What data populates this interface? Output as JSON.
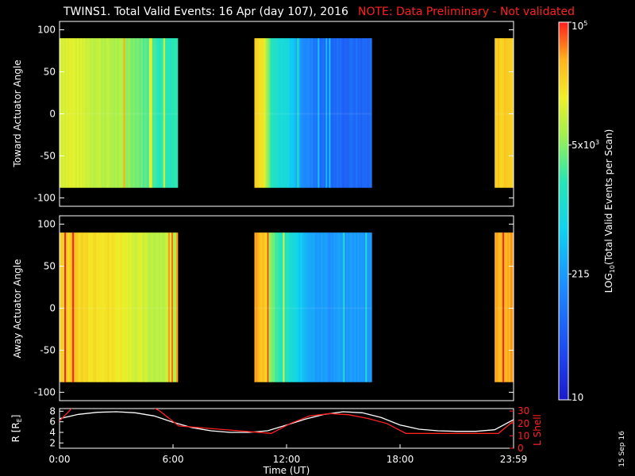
{
  "header": {
    "title": "TWINS1. Total Valid Events: 16 Apr (day 107), 2016",
    "note": "NOTE: Data Preliminary - Not validated"
  },
  "side_date": "15 Sep 16",
  "colors": {
    "note": "#ff2020",
    "lshell": "#ff2020",
    "radius": "#ffffff",
    "background": "#000000"
  },
  "chart_data": [
    {
      "type": "heatmap",
      "panel": "toward",
      "ylabel": "Toward Actuator Angle",
      "ylim": [
        -110,
        110
      ],
      "yticks": [
        "100",
        "50",
        "0",
        "-50",
        "-100"
      ],
      "angle_range": [
        -88,
        90
      ],
      "x_units": "hours UT",
      "xlim": [
        0,
        24
      ],
      "segments": [
        {
          "start": 0.0,
          "end": 6.25,
          "levels": [
            0.78,
            0.78,
            0.76,
            0.74,
            0.72,
            0.7,
            0.66,
            0.6,
            0.58,
            0.58
          ]
        },
        {
          "start": 10.3,
          "end": 16.5,
          "levels": [
            0.88,
            0.82,
            0.55,
            0.5,
            0.48,
            0.38,
            0.3,
            0.26,
            0.22,
            0.2,
            0.22,
            0.2,
            0.22,
            0.2,
            0.22
          ]
        },
        {
          "start": 23.0,
          "end": 24.0,
          "levels": [
            0.86,
            0.86
          ]
        }
      ]
    },
    {
      "type": "heatmap",
      "panel": "away",
      "ylabel": "Away Actuator Angle",
      "ylim": [
        -110,
        110
      ],
      "yticks": [
        "100",
        "50",
        "0",
        "-50",
        "-100"
      ],
      "angle_range": [
        -88,
        90
      ],
      "x_units": "hours UT",
      "xlim": [
        0,
        24
      ],
      "segments": [
        {
          "start": 0.0,
          "end": 6.25,
          "levels": [
            0.86,
            0.86,
            0.84,
            0.84,
            0.82,
            0.8,
            0.76,
            0.74,
            0.74,
            0.74
          ]
        },
        {
          "start": 10.3,
          "end": 16.5,
          "levels": [
            0.92,
            0.88,
            0.66,
            0.56,
            0.54,
            0.46,
            0.4,
            0.36,
            0.34,
            0.32,
            0.34,
            0.32,
            0.34,
            0.32,
            0.34
          ]
        },
        {
          "start": 23.0,
          "end": 24.0,
          "levels": [
            0.9,
            0.9
          ]
        }
      ]
    },
    {
      "type": "line",
      "panel": "orbit",
      "xlabel": "Time (UT)",
      "xticks": [
        "0:00",
        "6:00",
        "12:00",
        "18:00",
        "23:59"
      ],
      "xtick_hours": [
        0,
        6,
        12,
        18,
        24
      ],
      "ylabel_left": "R [RE]",
      "ylabel_left_main": "R [R",
      "ylabel_left_sub": "E",
      "ylabel_left_end": "]",
      "yticks_left": [
        "8",
        "6",
        "4",
        "2"
      ],
      "ylim_left": [
        1,
        8.5
      ],
      "ylabel_right": "L Shell",
      "yticks_right": [
        "30",
        "20",
        "10",
        "0"
      ],
      "ylim_right": [
        0,
        32
      ],
      "series": [
        {
          "name": "R [RE]",
          "axis": "left",
          "x": [
            0,
            1,
            2,
            3,
            4,
            5,
            6,
            7,
            8,
            9,
            10,
            11,
            12,
            13,
            14,
            15,
            16,
            17,
            18,
            19,
            20,
            21,
            22,
            23,
            24
          ],
          "y": [
            6.6,
            7.4,
            7.8,
            7.9,
            7.7,
            7.1,
            5.9,
            4.9,
            4.3,
            4.0,
            4.0,
            4.3,
            5.4,
            6.5,
            7.4,
            7.9,
            7.7,
            6.8,
            5.4,
            4.6,
            4.3,
            4.2,
            4.2,
            4.5,
            6.4
          ]
        },
        {
          "name": "L Shell",
          "axis": "right",
          "x": [
            0,
            0.7,
            1.3,
            4.7,
            5.3,
            6.3,
            11.2,
            12.2,
            13.2,
            14.3,
            15.3,
            16.3,
            17.3,
            18.3,
            23.2,
            24.0
          ],
          "y": [
            22,
            33,
            35,
            35,
            30,
            18,
            12,
            20,
            26,
            28,
            27,
            24,
            20,
            12,
            12,
            22
          ]
        }
      ]
    },
    {
      "type": "colorbar",
      "label": "LOG10(Total Valid Events per Scan)",
      "label_main": "LOG",
      "label_sub": "10",
      "label_rest": "(Total Valid Events per Scan)",
      "scale": "log",
      "range": [
        10,
        100000
      ],
      "ticks": [
        {
          "value": 100000,
          "label_base": "10",
          "label_exp": "5"
        },
        {
          "value": 5000,
          "label_base": "5x10",
          "label_exp": "3"
        },
        {
          "value": 215,
          "label_base": "215",
          "label_exp": ""
        },
        {
          "value": 10,
          "label_base": "10",
          "label_exp": ""
        }
      ]
    }
  ]
}
